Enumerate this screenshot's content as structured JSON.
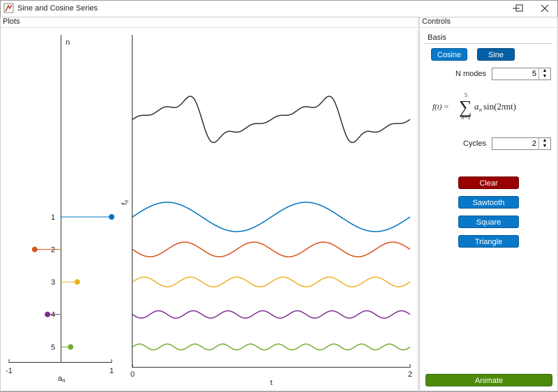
{
  "window": {
    "title": "Sine and Cosine Series"
  },
  "plots": {
    "title": "Plots",
    "stem_chart": {
      "type": "stem",
      "y_label": "n",
      "x_label": {
        "base": "a",
        "sub": "n"
      },
      "categories": [
        1,
        2,
        3,
        4,
        5
      ],
      "values": [
        1,
        -0.5,
        0.33,
        -0.25,
        0.2
      ],
      "colors": [
        "#0072bd",
        "#d95319",
        "#edb120",
        "#7e2f8e",
        "#77ac30"
      ],
      "xlim": [
        -1,
        1
      ],
      "xticks": [
        -1,
        1
      ]
    },
    "wave_chart": {
      "type": "line",
      "x_label": "t",
      "y_label": {
        "base": "f",
        "sub": "n"
      },
      "xlim": [
        0,
        2
      ],
      "xticks": [
        0,
        2
      ],
      "sum_color": "#333333"
    }
  },
  "controls": {
    "title": "Controls",
    "tab": "Basis",
    "basis_buttons": [
      "Cosine",
      "Sine"
    ],
    "n_modes": {
      "label": "N modes",
      "value": 5
    },
    "formula": {
      "lhs": "f(t) =",
      "sigma": "∑",
      "upper": "5",
      "lower": "n=1",
      "coef": "a",
      "coef_sub": "n",
      "func": "sin(2πnt)"
    },
    "cycles": {
      "label": "Cycles",
      "value": 2
    },
    "clear": "Clear",
    "presets": [
      "Sawtooth",
      "Square",
      "Triangle"
    ],
    "animate": "Animate"
  }
}
